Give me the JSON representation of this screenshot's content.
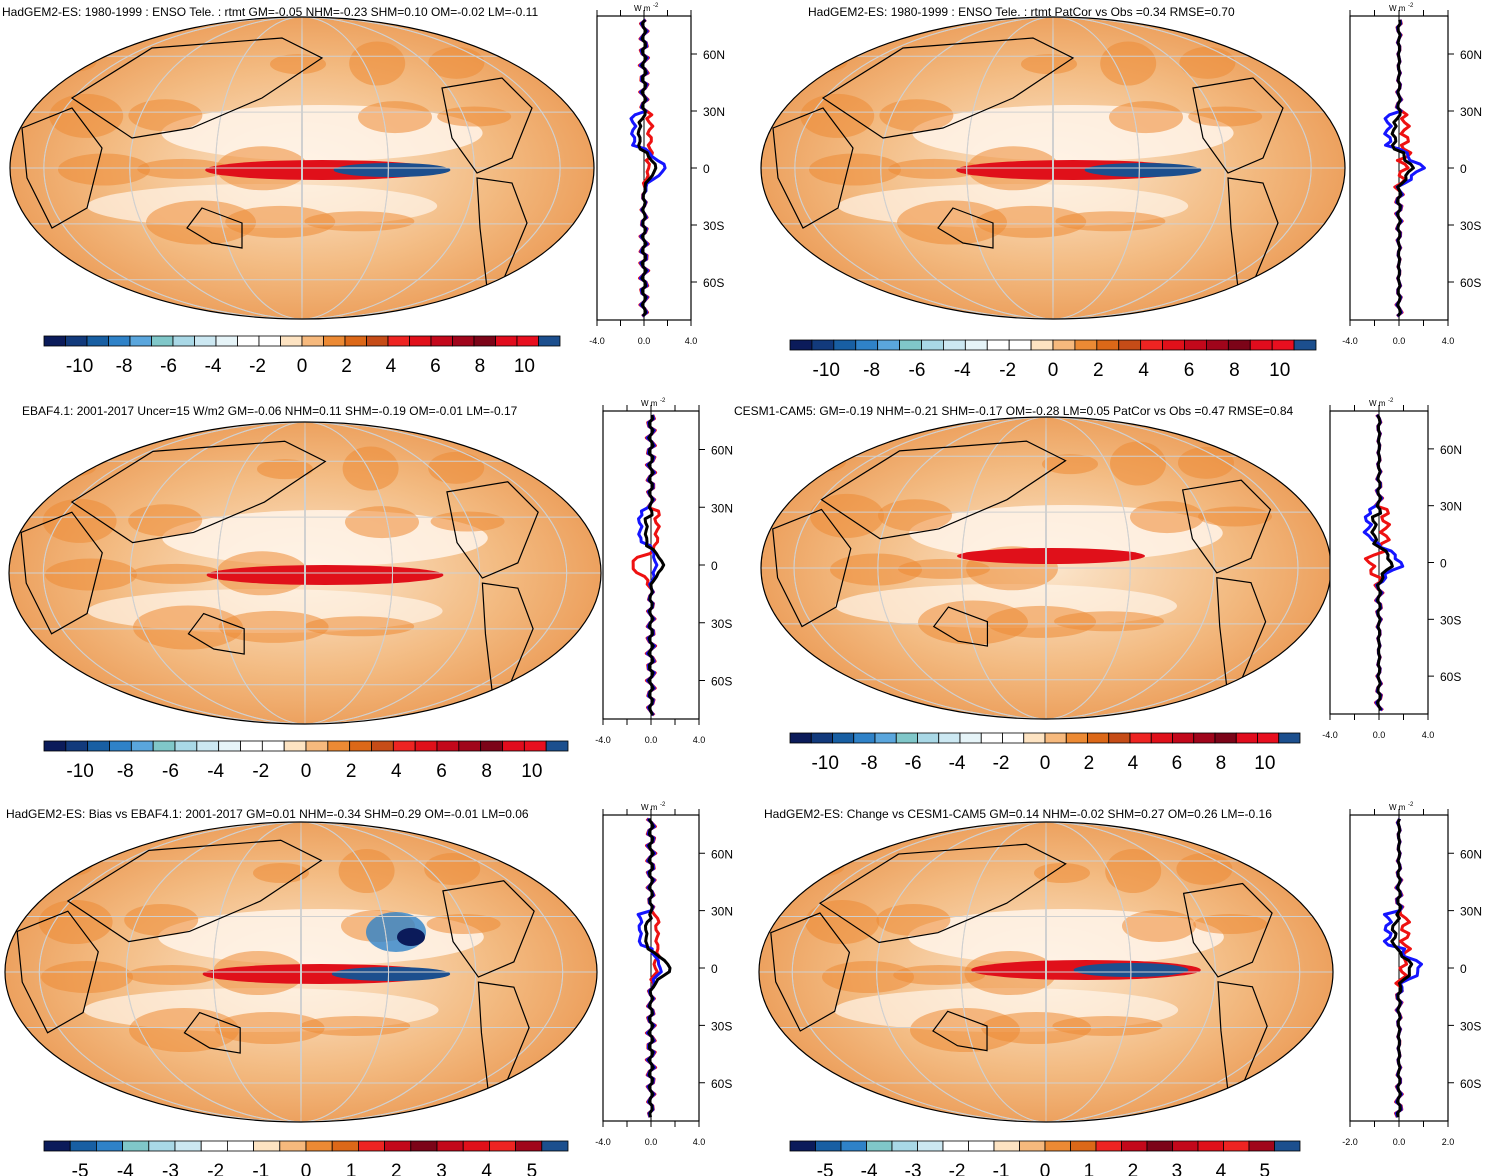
{
  "figure": {
    "unit_label": "W m",
    "unit_exponent": "-2",
    "lat_labels": [
      "60N",
      "30N",
      "0",
      "30S",
      "60S"
    ],
    "line_colors": {
      "blue": "#1515ff",
      "red": "#ee1111",
      "black": "#000000"
    },
    "colors_ten": [
      "#0b1b5a",
      "#123a7c",
      "#185fa3",
      "#2f82c8",
      "#5aa6dd",
      "#80c7c9",
      "#a9d8e6",
      "#cce8f2",
      "#e6f4f8",
      "#ffffff",
      "#ffffff",
      "#fde3c2",
      "#f6b97d",
      "#ec8a34",
      "#dc6818",
      "#c64c17",
      "#ee2422",
      "#e0101a",
      "#c3081b",
      "#a0051b",
      "#7c0418",
      "#e10c1d",
      "#e80f1f",
      "#1c4f8e"
    ],
    "colors_five": [
      "#0b1b5a",
      "#185fa3",
      "#2f82c8",
      "#80c7c9",
      "#a9d8e6",
      "#cce8f2",
      "#ffffff",
      "#ffffff",
      "#fde3c2",
      "#f6b97d",
      "#ec8a34",
      "#dc6818",
      "#ee2422",
      "#c3081b",
      "#7c0418",
      "#c3081b",
      "#e0101a",
      "#ee2422",
      "#a0051b",
      "#1c4f8e"
    ]
  },
  "chart_data": [
    {
      "type": "map",
      "title": "HadGEM2-ES: 1980-1999 : ENSO Tele. : rtmt GM=-0.05 NHM=-0.23 SHM=0.10 OM=-0.02 LM=-0.11",
      "colorbar": {
        "labels": [
          "-10",
          "-8",
          "-6",
          "-4",
          "-2",
          "0",
          "2",
          "4",
          "6",
          "8",
          "10"
        ],
        "scale": "ten"
      },
      "zonal_profile": {
        "xlim": [
          -4,
          4
        ],
        "xtick_labels": [
          "-4.0",
          "0.0",
          "4.0"
        ],
        "lat_range": [
          -80,
          80
        ]
      }
    },
    {
      "type": "map",
      "title": "HadGEM2-ES: 1980-1999 : ENSO Tele. : rtmt PatCor vs Obs =0.34 RMSE=0.70",
      "colorbar": {
        "labels": [
          "-10",
          "-8",
          "-6",
          "-4",
          "-2",
          "0",
          "2",
          "4",
          "6",
          "8",
          "10"
        ],
        "scale": "ten"
      },
      "zonal_profile": {
        "xlim": [
          -4,
          4
        ],
        "xtick_labels": [
          "-4.0",
          "0.0",
          "4.0"
        ],
        "lat_range": [
          -80,
          80
        ]
      }
    },
    {
      "type": "map",
      "title": "EBAF4.1: 2001-2017 Uncer=15 W/m2 GM=-0.06 NHM=0.11 SHM=-0.19 OM=-0.01 LM=-0.17",
      "colorbar": {
        "labels": [
          "-10",
          "-8",
          "-6",
          "-4",
          "-2",
          "0",
          "2",
          "4",
          "6",
          "8",
          "10"
        ],
        "scale": "ten"
      },
      "zonal_profile": {
        "xlim": [
          -4,
          4
        ],
        "xtick_labels": [
          "-4.0",
          "0.0",
          "4.0"
        ],
        "lat_range": [
          -80,
          80
        ]
      }
    },
    {
      "type": "map",
      "title": "CESM1-CAM5: GM=-0.19 NHM=-0.21 SHM=-0.17 OM=-0.28 LM=0.05 PatCor vs Obs =0.47 RMSE=0.84",
      "colorbar": {
        "labels": [
          "-10",
          "-8",
          "-6",
          "-4",
          "-2",
          "0",
          "2",
          "4",
          "6",
          "8",
          "10"
        ],
        "scale": "ten"
      },
      "zonal_profile": {
        "xlim": [
          -4,
          4
        ],
        "xtick_labels": [
          "-4.0",
          "0.0",
          "4.0"
        ],
        "lat_range": [
          -80,
          80
        ]
      }
    },
    {
      "type": "map",
      "title": "HadGEM2-ES: Bias vs EBAF4.1: 2001-2017 GM=0.01 NHM=-0.34 SHM=0.29 OM=-0.01 LM=0.06",
      "colorbar": {
        "labels": [
          "-5",
          "-4",
          "-3",
          "-2",
          "-1",
          "0",
          "1",
          "2",
          "3",
          "4",
          "5"
        ],
        "scale": "five"
      },
      "zonal_profile": {
        "xlim": [
          -4,
          4
        ],
        "xtick_labels": [
          "-4.0",
          "0.0",
          "4.0"
        ],
        "lat_range": [
          -80,
          80
        ]
      }
    },
    {
      "type": "map",
      "title": "HadGEM2-ES: Change vs CESM1-CAM5 GM=0.14 NHM=-0.02 SHM=0.27 OM=0.26 LM=-0.16",
      "colorbar": {
        "labels": [
          "-5",
          "-4",
          "-3",
          "-2",
          "-1",
          "0",
          "1",
          "2",
          "3",
          "4",
          "5"
        ],
        "scale": "five"
      },
      "zonal_profile": {
        "xlim": [
          -2,
          2
        ],
        "xtick_labels": [
          "-2.0",
          "0.0",
          "2.0"
        ],
        "lat_range": [
          -80,
          80
        ]
      }
    }
  ]
}
